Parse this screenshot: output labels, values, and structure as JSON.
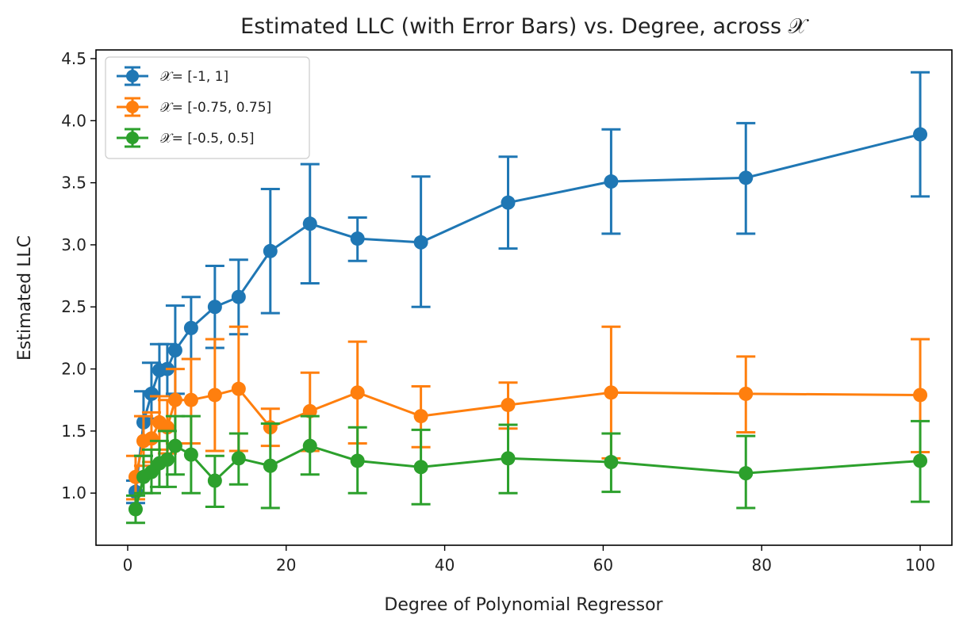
{
  "chart_data": {
    "type": "line",
    "title": "Estimated LLC (with Error Bars) vs. Degree, across 𝒳",
    "xlabel": "Degree of Polynomial Regressor",
    "ylabel": "Estimated LLC",
    "xlim": [
      -4,
      104
    ],
    "ylim": [
      0.58,
      4.57
    ],
    "xticks": [
      0,
      20,
      40,
      60,
      80,
      100
    ],
    "xtick_labels": [
      "0",
      "20",
      "40",
      "60",
      "80",
      "100"
    ],
    "yticks": [
      1.0,
      1.5,
      2.0,
      2.5,
      3.0,
      3.5,
      4.0,
      4.5
    ],
    "ytick_labels": [
      "1.0",
      "1.5",
      "2.0",
      "2.5",
      "3.0",
      "3.5",
      "4.0",
      "4.5"
    ],
    "grid": false,
    "legend_position": "top-left",
    "x": [
      1,
      2,
      3,
      4,
      5,
      6,
      8,
      11,
      14,
      18,
      23,
      29,
      37,
      48,
      61,
      78,
      100
    ],
    "series": [
      {
        "name": "𝒳= [-1, 1]",
        "color": "#1f77b4",
        "values": [
          1.01,
          1.57,
          1.8,
          1.99,
          2.0,
          2.15,
          2.33,
          2.5,
          2.58,
          2.95,
          3.17,
          3.05,
          3.02,
          3.34,
          3.51,
          3.54,
          3.89
        ],
        "lower": [
          0.92,
          1.3,
          1.6,
          1.78,
          1.78,
          1.8,
          2.08,
          2.17,
          2.28,
          2.45,
          2.69,
          2.87,
          2.5,
          2.97,
          3.09,
          3.09,
          3.39
        ],
        "upper": [
          1.1,
          1.82,
          2.05,
          2.2,
          2.2,
          2.51,
          2.58,
          2.83,
          2.88,
          3.45,
          3.65,
          3.22,
          3.55,
          3.71,
          3.93,
          3.98,
          4.39
        ]
      },
      {
        "name": "𝒳= [-0.75, 0.75]",
        "color": "#ff7f0e",
        "values": [
          1.13,
          1.42,
          1.44,
          1.57,
          1.53,
          1.75,
          1.75,
          1.79,
          1.84,
          1.53,
          1.66,
          1.81,
          1.62,
          1.71,
          1.81,
          1.8,
          1.79
        ],
        "lower": [
          0.95,
          1.22,
          1.25,
          1.35,
          1.32,
          1.4,
          1.4,
          1.34,
          1.34,
          1.38,
          1.34,
          1.4,
          1.37,
          1.52,
          1.28,
          1.49,
          1.33
        ],
        "upper": [
          1.3,
          1.62,
          1.65,
          1.78,
          1.75,
          2.0,
          2.08,
          2.24,
          2.34,
          1.68,
          1.97,
          2.22,
          1.86,
          1.89,
          2.34,
          2.1,
          2.24
        ]
      },
      {
        "name": "𝒳= [-0.5, 0.5]",
        "color": "#2ca02c",
        "values": [
          0.87,
          1.13,
          1.17,
          1.24,
          1.27,
          1.38,
          1.31,
          1.1,
          1.28,
          1.22,
          1.38,
          1.26,
          1.21,
          1.28,
          1.25,
          1.16,
          1.26
        ],
        "lower": [
          0.76,
          1.0,
          1.0,
          1.05,
          1.05,
          1.15,
          1.0,
          0.89,
          1.07,
          0.88,
          1.15,
          1.0,
          0.91,
          1.0,
          1.01,
          0.88,
          0.93
        ],
        "upper": [
          0.98,
          1.3,
          1.35,
          1.42,
          1.5,
          1.62,
          1.62,
          1.3,
          1.48,
          1.56,
          1.62,
          1.53,
          1.51,
          1.55,
          1.48,
          1.46,
          1.58
        ]
      }
    ]
  }
}
